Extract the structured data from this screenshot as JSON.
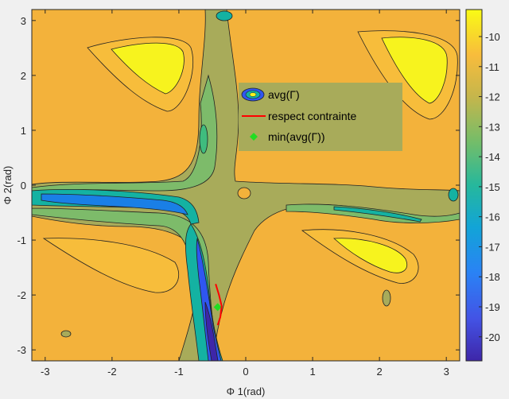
{
  "chart_data": {
    "type": "contour",
    "title": "",
    "xlabel": "Φ 1(rad)",
    "ylabel": "Φ 2(rad)",
    "xlim": [
      -3.2,
      3.2
    ],
    "ylim": [
      -3.2,
      3.2
    ],
    "x_ticks": [
      -3,
      -2,
      -1,
      0,
      1,
      2,
      3
    ],
    "y_ticks": [
      -3,
      -2,
      -1,
      0,
      1,
      2,
      3
    ],
    "colorbar": {
      "range": [
        -20.8,
        -9.1
      ],
      "ticks": [
        -10,
        -11,
        -12,
        -13,
        -14,
        -15,
        -16,
        -17,
        -18,
        -19,
        -20
      ],
      "colormap": "parula"
    },
    "legend": {
      "placement": "center",
      "entries": [
        {
          "label": "avg(Γ)",
          "marker": "contour"
        },
        {
          "label": "respect contrainte",
          "marker": "line",
          "color": "#ff0000"
        },
        {
          "label": "min(avg(Γ))",
          "marker": "diamond",
          "color": "#22dd22"
        }
      ]
    },
    "series": [
      {
        "name": "min(avg(Γ))",
        "type": "scatter",
        "x": [
          -0.42
        ],
        "y": [
          -2.22
        ],
        "color": "#22dd22"
      },
      {
        "name": "respect contrainte",
        "type": "line",
        "x": [
          -0.45,
          -0.4,
          -0.36,
          -0.38,
          -0.42
        ],
        "y": [
          -1.8,
          -2.0,
          -2.2,
          -2.4,
          -2.55
        ],
        "color": "#ff0000"
      }
    ],
    "fill_levels": [
      {
        "value": -20.5,
        "color": "#3e26a8"
      },
      {
        "value": -19.4,
        "color": "#2f56f0"
      },
      {
        "value": -18.4,
        "color": "#1a7fe6"
      },
      {
        "value": -17.5,
        "color": "#0f9ec8"
      },
      {
        "value": -16.5,
        "color": "#14b2a2"
      },
      {
        "value": -15.5,
        "color": "#3fbc7e"
      },
      {
        "value": -14.5,
        "color": "#7fba68"
      },
      {
        "value": -13.6,
        "color": "#a8b060"
      },
      {
        "value": -12.5,
        "color": "#e8a63c"
      },
      {
        "value": -11.2,
        "color": "#f7bd3b"
      },
      {
        "value": -10.0,
        "color": "#f7f31e"
      }
    ]
  }
}
